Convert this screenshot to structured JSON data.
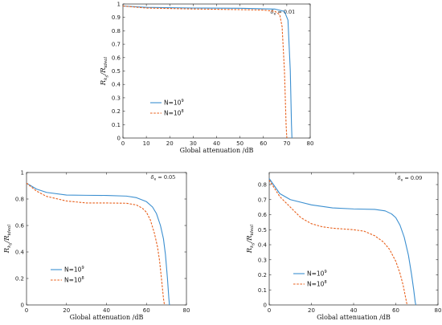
{
  "chart_data": [
    {
      "type": "line",
      "panel": "top",
      "annotation": {
        "symbol": "δ",
        "sub": "e",
        "value": " = 0.01"
      },
      "xlabel": "Global attenuation /dB",
      "ylabel": {
        "main": "R",
        "sub1": "k",
        "sub2": "s",
        "div": "/R",
        "sub3": "ideal"
      },
      "xlim": [
        0,
        80
      ],
      "ylim": [
        0,
        1
      ],
      "xticks": [
        0,
        10,
        20,
        30,
        40,
        50,
        60,
        70,
        80
      ],
      "xtick_labels": [
        "0",
        "10",
        "20",
        "30",
        "40",
        "50",
        "60",
        "70",
        "80"
      ],
      "yticks": [
        0,
        0.1,
        0.2,
        0.3,
        0.4,
        0.5,
        0.6,
        0.7,
        0.8,
        0.9,
        1
      ],
      "ytick_labels": [
        "0",
        "0.1",
        "0.2",
        "0.3",
        "0.4",
        "0.5",
        "0.6",
        "0.7",
        "0.8",
        "0.9",
        "1"
      ],
      "legend": {
        "placement": "middle-left"
      },
      "series": [
        {
          "name": "N=10",
          "sup": "9",
          "color": "#3b8fd0",
          "dash": false,
          "x": [
            0,
            10,
            30,
            50,
            65,
            69,
            70.5,
            71.5,
            72,
            72.2
          ],
          "y": [
            0.985,
            0.975,
            0.97,
            0.968,
            0.962,
            0.945,
            0.88,
            0.5,
            0.1,
            0
          ]
        },
        {
          "name": "N=10",
          "sup": "8",
          "color": "#e8601c",
          "dash": true,
          "x": [
            0,
            10,
            30,
            50,
            60,
            65,
            67,
            68,
            69,
            69.7,
            70
          ],
          "y": [
            0.985,
            0.97,
            0.963,
            0.958,
            0.955,
            0.945,
            0.92,
            0.83,
            0.5,
            0.1,
            0
          ]
        }
      ]
    },
    {
      "type": "line",
      "panel": "bottom-left",
      "annotation": {
        "symbol": "δ",
        "sub": "e",
        "value": " = 0.05"
      },
      "xlabel": "Global attenuation /dB",
      "ylabel": {
        "main": "R",
        "sub1": "k",
        "sub2": "s",
        "div": "/R",
        "sub3": "ideal"
      },
      "xlim": [
        0,
        80
      ],
      "ylim": [
        0,
        1
      ],
      "xticks": [
        0,
        20,
        40,
        60,
        80
      ],
      "xtick_labels": [
        "0",
        "20",
        "40",
        "60",
        "80"
      ],
      "yticks": [
        0,
        0.2,
        0.4,
        0.6,
        0.8,
        1
      ],
      "ytick_labels": [
        "0",
        "0.2",
        "0.4",
        "0.6",
        "0.8",
        "1"
      ],
      "legend": {
        "placement": "lower-left"
      },
      "series": [
        {
          "name": "N=10",
          "sup": "9",
          "color": "#3b8fd0",
          "dash": false,
          "x": [
            0,
            5,
            10,
            20,
            30,
            40,
            50,
            55,
            60,
            63,
            65,
            67,
            68.5,
            69.5,
            70.5,
            71.2,
            71.5
          ],
          "y": [
            0.92,
            0.875,
            0.85,
            0.83,
            0.828,
            0.827,
            0.822,
            0.81,
            0.78,
            0.74,
            0.69,
            0.6,
            0.5,
            0.38,
            0.2,
            0.05,
            0
          ]
        },
        {
          "name": "N=10",
          "sup": "8",
          "color": "#e8601c",
          "dash": true,
          "x": [
            0,
            5,
            10,
            20,
            30,
            40,
            50,
            55,
            58,
            60,
            62,
            64,
            65.5,
            66.5,
            67.5,
            68.5,
            69
          ],
          "y": [
            0.92,
            0.86,
            0.82,
            0.785,
            0.77,
            0.77,
            0.768,
            0.755,
            0.73,
            0.7,
            0.64,
            0.54,
            0.44,
            0.34,
            0.2,
            0.05,
            0
          ]
        }
      ]
    },
    {
      "type": "line",
      "panel": "bottom-right",
      "annotation": {
        "symbol": "δ",
        "sub": "e",
        "value": " = 0.09"
      },
      "xlabel": "Global attenuation /dB",
      "ylabel": {
        "main": "R",
        "sub1": "k",
        "sub2": "s",
        "div": "/R",
        "sub3": "ideal"
      },
      "xlim": [
        0,
        80
      ],
      "ylim": [
        0,
        0.88
      ],
      "xticks": [
        0,
        20,
        40,
        60,
        80
      ],
      "xtick_labels": [
        "0",
        "20",
        "40",
        "60",
        "80"
      ],
      "yticks": [
        0,
        0.1,
        0.2,
        0.3,
        0.4,
        0.5,
        0.6,
        0.7,
        0.8
      ],
      "ytick_labels": [
        "0",
        "0.1",
        "0.2",
        "0.3",
        "0.4",
        "0.5",
        "0.6",
        "0.7",
        "0.8"
      ],
      "legend": {
        "placement": "lower-left"
      },
      "series": [
        {
          "name": "N=10",
          "sup": "9",
          "color": "#3b8fd0",
          "dash": false,
          "x": [
            0,
            5,
            10,
            20,
            30,
            40,
            50,
            55,
            58,
            60,
            62,
            64,
            66,
            67.5,
            68.5,
            69.2,
            69.5
          ],
          "y": [
            0.84,
            0.74,
            0.7,
            0.665,
            0.645,
            0.638,
            0.635,
            0.625,
            0.605,
            0.58,
            0.53,
            0.45,
            0.33,
            0.2,
            0.1,
            0.02,
            0
          ]
        },
        {
          "name": "N=10",
          "sup": "8",
          "color": "#e8601c",
          "dash": true,
          "x": [
            0,
            5,
            10,
            15,
            20,
            25,
            30,
            40,
            45,
            50,
            54,
            57,
            60,
            62,
            63.5,
            64.5,
            65.2,
            65.5
          ],
          "y": [
            0.83,
            0.72,
            0.65,
            0.58,
            0.54,
            0.52,
            0.51,
            0.5,
            0.49,
            0.46,
            0.42,
            0.37,
            0.29,
            0.21,
            0.13,
            0.06,
            0.01,
            0
          ]
        }
      ]
    }
  ]
}
